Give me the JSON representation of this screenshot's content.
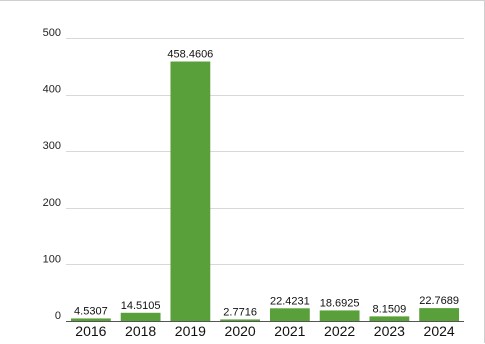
{
  "chart_data": {
    "type": "bar",
    "categories": [
      "2016",
      "2018",
      "2019",
      "2020",
      "2021",
      "2022",
      "2023",
      "2024"
    ],
    "values": [
      4.5307,
      14.5105,
      458.4606,
      2.7716,
      22.4231,
      18.6925,
      8.1509,
      22.7689
    ],
    "data_labels": [
      "4.5307",
      "14.5105",
      "458.4606",
      "2.7716",
      "22.4231",
      "18.6925",
      "8.1509",
      "22.7689"
    ],
    "yticks": [
      0,
      100,
      200,
      300,
      400,
      500
    ],
    "ytick_labels": [
      "0",
      "100",
      "200",
      "300",
      "400",
      "500"
    ],
    "ylim": [
      0,
      500
    ],
    "grid": true,
    "legend": "none",
    "bar_color": "#5aa03a"
  }
}
